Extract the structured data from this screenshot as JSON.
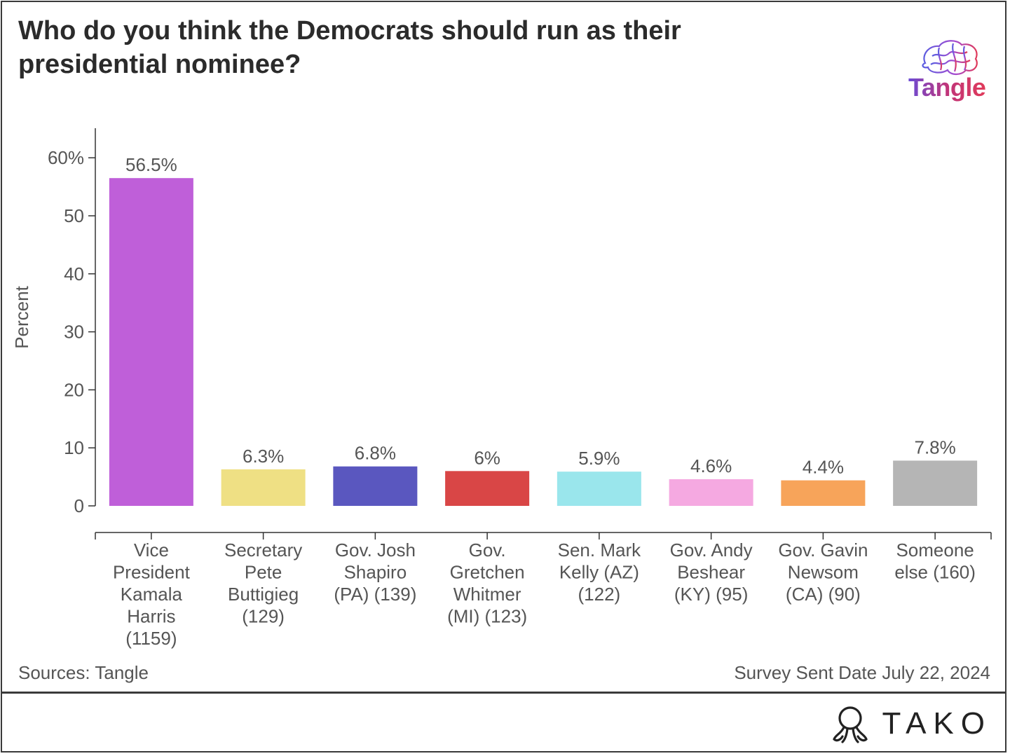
{
  "title": "Who do you think the Democrats should run as their presidential nominee?",
  "logo": {
    "name": "Tangle",
    "icon": "brain-icon",
    "colors": [
      "#6a4bd6",
      "#e03a5a"
    ]
  },
  "chart_data": {
    "type": "bar",
    "categories": [
      "Vice President Kamala Harris (1159)",
      "Secretary Pete Buttigieg (129)",
      "Gov. Josh Shapiro (PA) (139)",
      "Gov. Gretchen Whitmer (MI) (123)",
      "Sen. Mark Kelly (AZ) (122)",
      "Gov. Andy Beshear (KY) (95)",
      "Gov. Gavin Newsom (CA) (90)",
      "Someone else (160)"
    ],
    "category_lines": [
      [
        "Vice",
        "President",
        "Kamala",
        "Harris",
        "(1159)"
      ],
      [
        "Secretary",
        "Pete",
        "Buttigieg",
        "(129)"
      ],
      [
        "Gov. Josh",
        "Shapiro",
        "(PA) (139)"
      ],
      [
        "Gov.",
        "Gretchen",
        "Whitmer",
        "(MI) (123)"
      ],
      [
        "Sen. Mark",
        "Kelly (AZ)",
        "(122)"
      ],
      [
        "Gov. Andy",
        "Beshear",
        "(KY) (95)"
      ],
      [
        "Gov. Gavin",
        "Newsom",
        "(CA) (90)"
      ],
      [
        "Someone",
        "else (160)"
      ]
    ],
    "values": [
      56.5,
      6.3,
      6.8,
      6,
      5.9,
      4.6,
      4.4,
      7.8
    ],
    "value_labels": [
      "56.5%",
      "6.3%",
      "6.8%",
      "6%",
      "5.9%",
      "4.6%",
      "4.4%",
      "7.8%"
    ],
    "colors": [
      "#bf5fd9",
      "#efe084",
      "#5a57bf",
      "#d94646",
      "#9ae6ec",
      "#f5a9e1",
      "#f7a45a",
      "#b5b5b5"
    ],
    "ylabel": "Percent",
    "xlabel": "",
    "ylim": [
      0,
      65
    ],
    "yticks": [
      0,
      10,
      20,
      30,
      40,
      50,
      60
    ],
    "ytick_labels": [
      "0",
      "10",
      "20",
      "30",
      "40",
      "50",
      "60%"
    ],
    "grid": false,
    "legend": "none"
  },
  "footer": {
    "source": "Sources: Tangle",
    "note": "Survey Sent Date July 22, 2024"
  },
  "brand": {
    "name": "TAKO",
    "icon": "tako-octopus-icon"
  }
}
